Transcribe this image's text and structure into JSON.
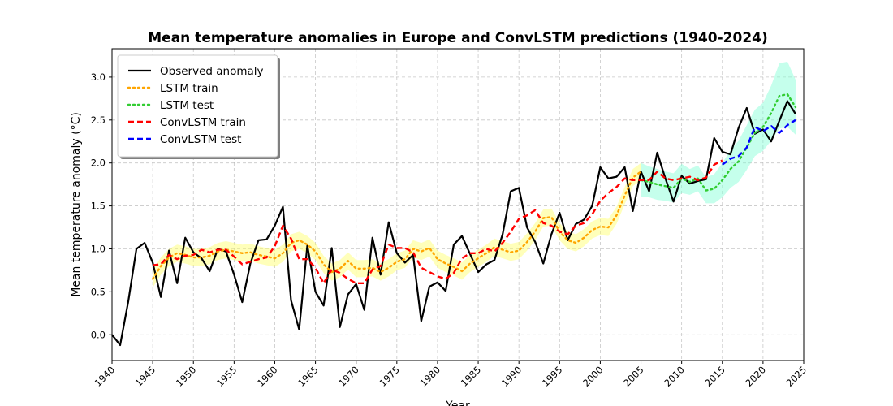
{
  "chart_data": {
    "type": "line",
    "title": "Mean temperature anomalies in Europe and ConvLSTM predictions (1940-2024)",
    "xlabel": "Year",
    "ylabel": "Mean temperature anomaly (°C)",
    "xlim": [
      1940,
      2025
    ],
    "ylim": [
      -0.3,
      3.33
    ],
    "xticks": [
      1940,
      1945,
      1950,
      1955,
      1960,
      1965,
      1970,
      1975,
      1980,
      1985,
      1990,
      1995,
      2000,
      2005,
      2010,
      2015,
      2020,
      2025
    ],
    "yticks": [
      "0.0",
      "0.5",
      "1.0",
      "1.5",
      "2.0",
      "2.5",
      "3.0"
    ],
    "grid": true,
    "legend_position": "upper-left",
    "series": [
      {
        "name": "Observed anomaly",
        "color": "#000000",
        "style": "solid",
        "x": [
          1940,
          1941,
          1942,
          1943,
          1944,
          1945,
          1946,
          1947,
          1948,
          1949,
          1950,
          1951,
          1952,
          1953,
          1954,
          1955,
          1956,
          1957,
          1958,
          1959,
          1960,
          1961,
          1962,
          1963,
          1964,
          1965,
          1966,
          1967,
          1968,
          1969,
          1970,
          1971,
          1972,
          1973,
          1974,
          1975,
          1976,
          1977,
          1978,
          1979,
          1980,
          1981,
          1982,
          1983,
          1984,
          1985,
          1986,
          1987,
          1988,
          1989,
          1990,
          1991,
          1992,
          1993,
          1994,
          1995,
          1996,
          1997,
          1998,
          1999,
          2000,
          2001,
          2002,
          2003,
          2004,
          2005,
          2006,
          2007,
          2008,
          2009,
          2010,
          2011,
          2012,
          2013,
          2014,
          2015,
          2016,
          2017,
          2018,
          2019,
          2020,
          2021,
          2022,
          2023,
          2024
        ],
        "values": [
          0.0,
          -0.12,
          0.39,
          1.0,
          1.07,
          0.84,
          0.44,
          0.98,
          0.6,
          1.13,
          0.96,
          0.89,
          0.74,
          1.0,
          0.97,
          0.7,
          0.38,
          0.83,
          1.1,
          1.11,
          1.27,
          1.49,
          0.4,
          0.06,
          1.04,
          0.5,
          0.34,
          1.01,
          0.09,
          0.47,
          0.59,
          0.29,
          1.13,
          0.7,
          1.31,
          0.95,
          0.84,
          0.93,
          0.16,
          0.56,
          0.61,
          0.51,
          1.05,
          1.15,
          0.94,
          0.73,
          0.82,
          0.87,
          1.17,
          1.67,
          1.71,
          1.25,
          1.08,
          0.83,
          1.17,
          1.42,
          1.1,
          1.29,
          1.34,
          1.5,
          1.95,
          1.82,
          1.84,
          1.95,
          1.44,
          1.9,
          1.67,
          2.12,
          1.82,
          1.55,
          1.85,
          1.76,
          1.79,
          1.81,
          2.29,
          2.13,
          2.1,
          2.41,
          2.64,
          2.34,
          2.39,
          2.25,
          2.49,
          2.72,
          2.57
        ]
      },
      {
        "name": "LSTM train",
        "color": "#ffa500",
        "band_color": "#ffff66",
        "style": "dotted",
        "x": [
          1945,
          1946,
          1947,
          1948,
          1949,
          1950,
          1951,
          1952,
          1953,
          1954,
          1955,
          1956,
          1957,
          1958,
          1959,
          1960,
          1961,
          1962,
          1963,
          1964,
          1965,
          1966,
          1967,
          1968,
          1969,
          1970,
          1971,
          1972,
          1973,
          1974,
          1975,
          1976,
          1977,
          1978,
          1979,
          1980,
          1981,
          1982,
          1983,
          1984,
          1985,
          1986,
          1987,
          1988,
          1989,
          1990,
          1991,
          1992,
          1993,
          1994,
          1995,
          1996,
          1997,
          1998,
          1999,
          2000,
          2001,
          2002,
          2003,
          2004,
          2005
        ],
        "values": [
          0.65,
          0.8,
          0.9,
          0.95,
          0.93,
          0.9,
          0.9,
          0.92,
          0.97,
          0.99,
          0.97,
          0.95,
          0.96,
          0.93,
          0.91,
          0.89,
          0.95,
          1.07,
          1.1,
          1.05,
          0.97,
          0.82,
          0.73,
          0.77,
          0.86,
          0.77,
          0.77,
          0.78,
          0.73,
          0.78,
          0.85,
          0.88,
          1.0,
          0.97,
          1.01,
          0.88,
          0.83,
          0.79,
          0.74,
          0.83,
          0.89,
          0.95,
          1.02,
          0.99,
          0.96,
          0.98,
          1.08,
          1.2,
          1.36,
          1.37,
          1.2,
          1.1,
          1.07,
          1.13,
          1.22,
          1.26,
          1.25,
          1.39,
          1.62,
          1.83,
          1.9
        ],
        "band": 0.1
      },
      {
        "name": "LSTM test",
        "color": "#32cd32",
        "band_color": "#7fffd4",
        "style": "dotted",
        "x": [
          2005,
          2006,
          2007,
          2008,
          2009,
          2010,
          2011,
          2012,
          2013,
          2014,
          2015,
          2016,
          2017,
          2018,
          2019,
          2020,
          2021,
          2022,
          2023,
          2024
        ],
        "values": [
          1.8,
          1.78,
          1.75,
          1.73,
          1.71,
          1.82,
          1.78,
          1.82,
          1.68,
          1.7,
          1.8,
          1.93,
          2.02,
          2.18,
          2.35,
          2.42,
          2.58,
          2.78,
          2.8,
          2.65
        ],
        "band": [
          0.2,
          0.18,
          0.18,
          0.17,
          0.17,
          0.17,
          0.15,
          0.15,
          0.15,
          0.17,
          0.2,
          0.22,
          0.24,
          0.26,
          0.27,
          0.28,
          0.32,
          0.38,
          0.38,
          0.32
        ]
      },
      {
        "name": "ConvLSTM train",
        "color": "#ff0000",
        "style": "dashed",
        "x": [
          1945,
          1946,
          1947,
          1948,
          1949,
          1950,
          1951,
          1952,
          1953,
          1954,
          1955,
          1956,
          1957,
          1958,
          1959,
          1960,
          1961,
          1962,
          1963,
          1964,
          1965,
          1966,
          1967,
          1968,
          1969,
          1970,
          1971,
          1972,
          1973,
          1974,
          1975,
          1976,
          1977,
          1978,
          1979,
          1980,
          1981,
          1982,
          1983,
          1984,
          1985,
          1986,
          1987,
          1988,
          1989,
          1990,
          1991,
          1992,
          1993,
          1994,
          1995,
          1996,
          1997,
          1998,
          1999,
          2000,
          2001,
          2002,
          2003,
          2004,
          2005,
          2006,
          2007,
          2008,
          2009,
          2010,
          2011,
          2012,
          2013,
          2014,
          2015
        ],
        "values": [
          0.81,
          0.82,
          0.93,
          0.88,
          0.92,
          0.93,
          0.99,
          0.96,
          0.99,
          0.99,
          0.91,
          0.82,
          0.85,
          0.88,
          0.9,
          1.03,
          1.27,
          1.12,
          0.88,
          0.88,
          0.78,
          0.6,
          0.76,
          0.72,
          0.65,
          0.6,
          0.6,
          0.76,
          0.8,
          1.05,
          1.01,
          1.01,
          0.96,
          0.78,
          0.73,
          0.68,
          0.65,
          0.72,
          0.89,
          0.95,
          0.95,
          1.0,
          0.97,
          1.07,
          1.2,
          1.35,
          1.39,
          1.45,
          1.3,
          1.27,
          1.2,
          1.17,
          1.27,
          1.3,
          1.4,
          1.56,
          1.65,
          1.72,
          1.82,
          1.8,
          1.8,
          1.8,
          1.9,
          1.82,
          1.8,
          1.82,
          1.84,
          1.8,
          1.83,
          1.98,
          2.03
        ],
        "band": 0
      },
      {
        "name": "ConvLSTM test",
        "color": "#0000ff",
        "style": "dashed",
        "x": [
          2015,
          2016,
          2017,
          2018,
          2019,
          2020,
          2021,
          2022,
          2023,
          2024
        ],
        "values": [
          1.98,
          2.05,
          2.08,
          2.18,
          2.42,
          2.37,
          2.43,
          2.35,
          2.44,
          2.5
        ],
        "band": 0
      }
    ]
  }
}
